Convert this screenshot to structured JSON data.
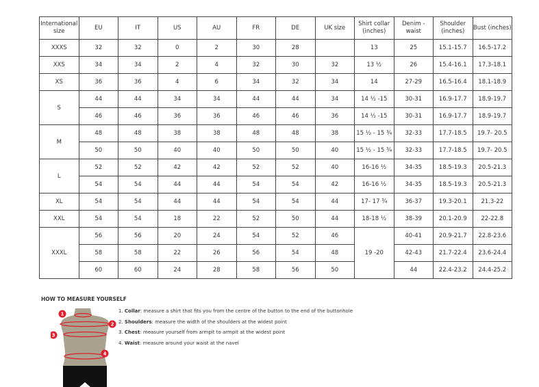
{
  "headers": [
    "International size",
    "EU",
    "IT",
    "US",
    "AU",
    "FR",
    "DE",
    "UK size",
    "Shirt collar (inches)",
    "Denim - waist",
    "Shoulder (inches)",
    "Bust (inches)"
  ],
  "rows": [
    [
      "XXXS",
      "32",
      "32",
      "0",
      "2",
      "30",
      "28",
      "",
      "13",
      "25",
      "15.1-15.7",
      "16.5-17.2"
    ],
    [
      "XXS",
      "34",
      "34",
      "2",
      "4",
      "32",
      "30",
      "32",
      "13 ½",
      "26",
      "15.4-16.1",
      "17.3-18.1"
    ],
    [
      "XS",
      "36",
      "36",
      "4",
      "6",
      "34",
      "32",
      "34",
      "14",
      "27-29",
      "16.5-16.4",
      "18.1-18.9"
    ],
    [
      "S",
      "44",
      "44",
      "34",
      "34",
      "44",
      "44",
      "34",
      "14 ½ -15",
      "30-31",
      "16.9-17.7",
      "18.9-19.7"
    ],
    [
      null,
      "46",
      "46",
      "36",
      "36",
      "46",
      "46",
      "36",
      "14 ½ -15",
      "30-31",
      "16.9-17.7",
      "18.9-19.7"
    ],
    [
      "M",
      "48",
      "48",
      "38",
      "38",
      "48",
      "48",
      "38",
      "15 ½ - 15 ¾",
      "32-33",
      "17.7-18.5",
      "19.7- 20.5"
    ],
    [
      null,
      "50",
      "50",
      "40",
      "40",
      "50",
      "50",
      "40",
      "15 ½ - 15 ¾",
      "32-33",
      "17.7-18.5",
      "19.7- 20.5"
    ],
    [
      "L",
      "52",
      "52",
      "42",
      "42",
      "52",
      "52",
      "40",
      "16-16 ½",
      "34-35",
      "18.5-19.3",
      "20.5-21.3"
    ],
    [
      null,
      "54",
      "54",
      "44",
      "44",
      "54",
      "54",
      "42",
      "16-16 ½",
      "34-35",
      "18.5-19.3",
      "20.5-21.3"
    ],
    [
      "XL",
      "54",
      "54",
      "44",
      "44",
      "54",
      "54",
      "44",
      "17- 17 ¾",
      "36-37",
      "19.3-20.1",
      "21.3-22"
    ],
    [
      "XXL",
      "54",
      "54",
      "18",
      "22",
      "52",
      "50",
      "44",
      "18-18 ½",
      "38-39",
      "20.1-20.9",
      "22-22.8"
    ],
    [
      "XXXL",
      "56",
      "56",
      "20",
      "24",
      "54",
      "52",
      "46",
      "19 -20",
      "40-41",
      "20.9-21.7",
      "22.8-23.6"
    ],
    [
      null,
      "58",
      "58",
      "22",
      "26",
      "56",
      "54",
      "48",
      null,
      "42-43",
      "21.7-22.4",
      "23.6-24.4"
    ],
    [
      null,
      "60",
      "60",
      "24",
      "28",
      "58",
      "56",
      "50",
      null,
      "44",
      "22.4-23.2",
      "24.4-25.2"
    ]
  ],
  "howto": {
    "title": "HOW TO MEASURE YOURSELF",
    "steps": [
      {
        "num": "1.",
        "term": "Collar",
        "text": ": measure a shirt that fits you from the centre of the button to the end of the buttonhole"
      },
      {
        "num": "2.",
        "term": "Shoulders",
        "text": ": measure the width of the shoulders at the widest point"
      },
      {
        "num": "3.",
        "term": "Chest",
        "text": ": measure yourself from armpit to armpit at the widest point"
      },
      {
        "num": "4.",
        "term": "Waist",
        "text": ": measure around your waist at the navel"
      }
    ],
    "markers": [
      "1",
      "2",
      "3",
      "4"
    ],
    "colors": {
      "marker": "#e0202e",
      "body": "#a9a28e",
      "shorts": "#111111"
    }
  }
}
